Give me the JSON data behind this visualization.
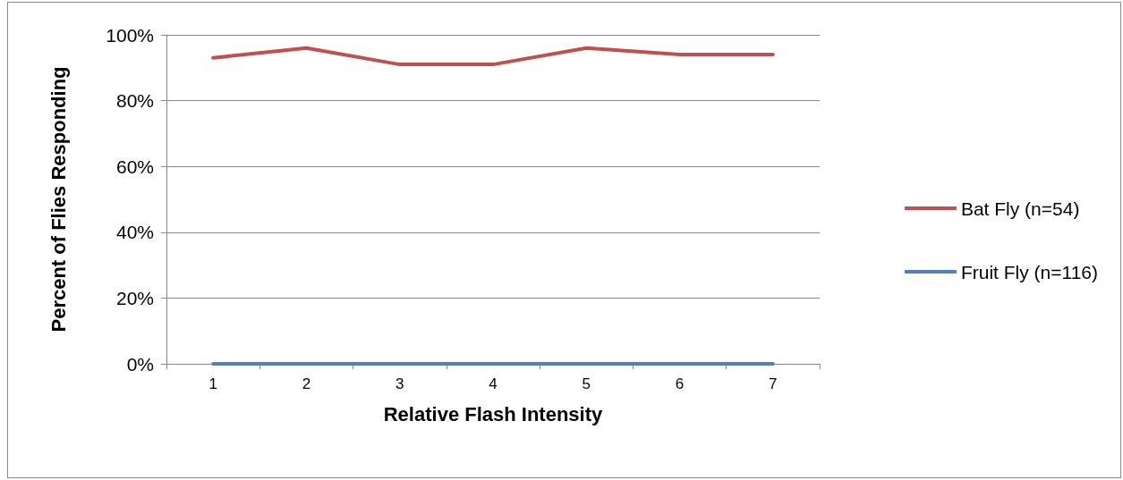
{
  "chart_data": {
    "type": "line",
    "xlabel": "Relative Flash Intensity",
    "ylabel": "Percent of Flies Responding",
    "categories": [
      "1",
      "2",
      "3",
      "4",
      "5",
      "6",
      "7"
    ],
    "series": [
      {
        "name": "Bat Fly (n=54)",
        "color": "#c0504d",
        "values": [
          93,
          96,
          91,
          91,
          96,
          94,
          94
        ]
      },
      {
        "name": "Fruit Fly (n=116)",
        "color": "#4f81bd",
        "values": [
          0,
          0,
          0,
          0,
          0,
          0,
          0
        ]
      }
    ],
    "ylim": [
      0,
      100
    ],
    "yticks": [
      {
        "value": 0,
        "label": "0%"
      },
      {
        "value": 20,
        "label": "20%"
      },
      {
        "value": 40,
        "label": "40%"
      },
      {
        "value": 60,
        "label": "60%"
      },
      {
        "value": 80,
        "label": "80%"
      },
      {
        "value": 100,
        "label": "100%"
      }
    ],
    "grid": "y",
    "legend": "right",
    "marker": "none",
    "line_style": "solid"
  }
}
